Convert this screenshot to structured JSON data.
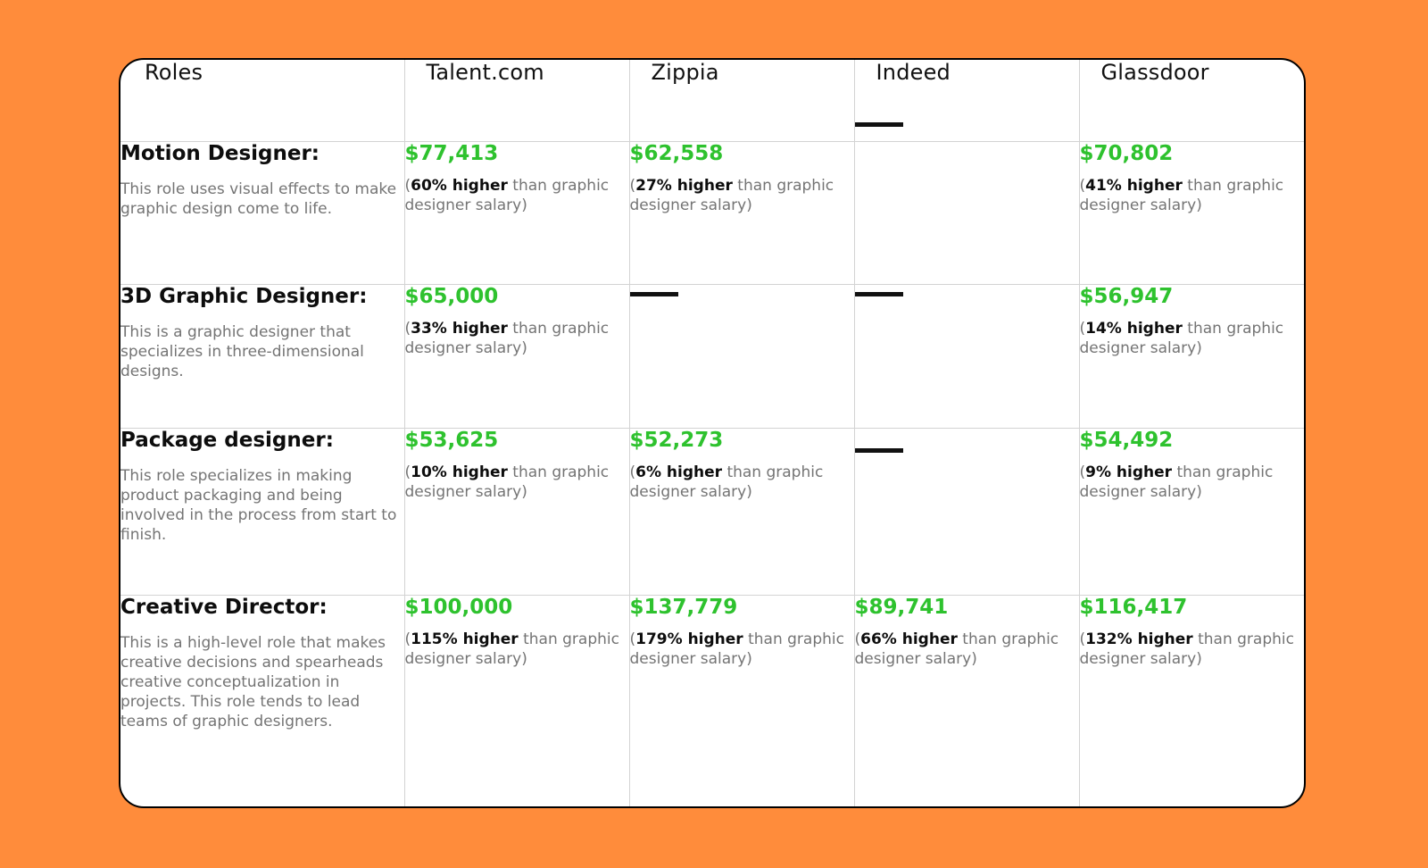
{
  "headers": {
    "roles": "Roles",
    "sources": [
      "Talent.com",
      "Zippia",
      "Indeed",
      "Glassdoor"
    ]
  },
  "common": {
    "open_paren": "(",
    "tail": " than graphic designer salary)",
    "no_data": "—"
  },
  "rows": [
    {
      "role": "Motion Designer:",
      "description": "This role uses visual effects to make graphic design come to life.",
      "values": [
        {
          "salary": "$77,413",
          "pct": "60% higher"
        },
        {
          "salary": "$62,558",
          "pct": "27% higher"
        },
        null,
        {
          "salary": "$70,802",
          "pct": "41% higher"
        }
      ]
    },
    {
      "role": "3D Graphic Designer:",
      "description": "This is a graphic designer that specializes in three-dimensional designs.",
      "values": [
        {
          "salary": "$65,000",
          "pct": "33% higher"
        },
        null,
        null,
        {
          "salary": "$56,947",
          "pct": "14% higher"
        }
      ]
    },
    {
      "role": "Package designer:",
      "description": "This role specializes in making product packaging and being involved in the process from start to finish.",
      "values": [
        {
          "salary": "$53,625",
          "pct": "10% higher"
        },
        {
          "salary": "$52,273",
          "pct": "6% higher"
        },
        null,
        {
          "salary": "$54,492",
          "pct": "9% higher"
        }
      ]
    },
    {
      "role": "Creative Director:",
      "description": "This is a high-level role that makes creative decisions and spearheads creative conceptualization in projects. This role tends to lead teams of graphic designers.",
      "values": [
        {
          "salary": "$100,000",
          "pct": "115% higher"
        },
        {
          "salary": "$137,779",
          "pct": "179% higher"
        },
        {
          "salary": "$89,741",
          "pct": "66% higher"
        },
        {
          "salary": "$116,417",
          "pct": "132% higher"
        }
      ]
    }
  ],
  "colors": {
    "background": "#ff8c3b",
    "card": "#ffffff",
    "salary_green": "#2ec22e",
    "muted_text": "#747474",
    "grid_line": "#d3d3d3"
  }
}
